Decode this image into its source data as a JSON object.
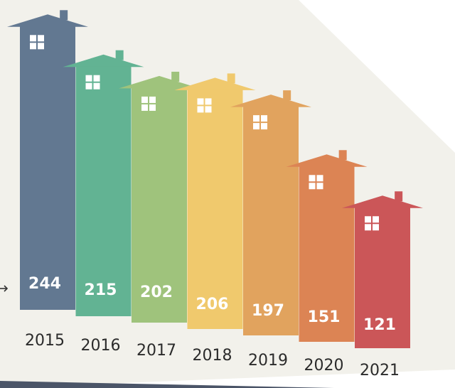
{
  "chart_data": {
    "type": "bar",
    "categories": [
      "2015",
      "2016",
      "2017",
      "2018",
      "2019",
      "2020",
      "2021"
    ],
    "values": [
      244,
      215,
      202,
      206,
      197,
      151,
      121
    ],
    "colors": [
      "#627891",
      "#62b393",
      "#9fc37c",
      "#f0c96d",
      "#e1a35e",
      "#dc8454",
      "#cb5658"
    ],
    "background": "#f2f1eb",
    "bar_style": "house",
    "title": "",
    "xlabel": "",
    "ylabel": ""
  }
}
